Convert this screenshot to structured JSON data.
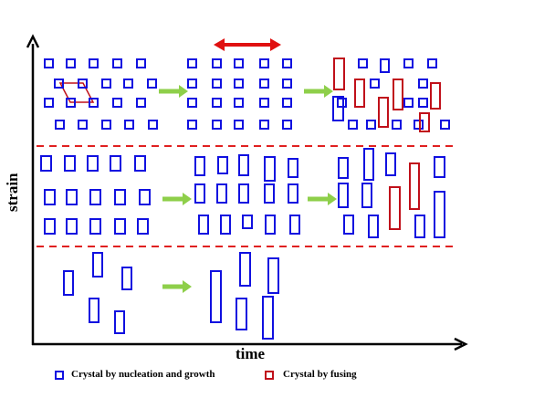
{
  "axes": {
    "x_label": "time",
    "y_label": "strain"
  },
  "legend": [
    {
      "label": "Crystal by nucleation and growth",
      "color": "#1010e0"
    },
    {
      "label": "Crystal by fusing",
      "color": "#c0101a"
    }
  ],
  "colors": {
    "nucleation": "#1010e0",
    "fusing": "#c0101a",
    "arrow": "#8ecf4a",
    "divider": "#e02020",
    "red_arrow": "#e01010",
    "axis": "#000000"
  }
}
